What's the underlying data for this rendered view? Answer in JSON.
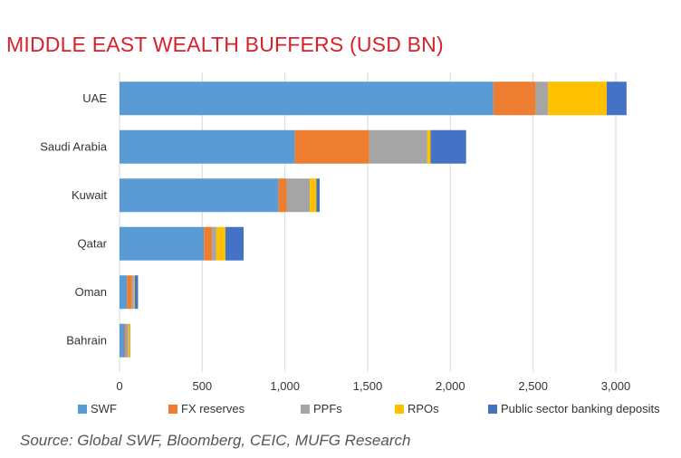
{
  "title": "MIDDLE EAST WEALTH BUFFERS (USD BN)",
  "source": "Source: Global SWF, Bloomberg, CEIC, MUFG Research",
  "chart_data": {
    "type": "bar",
    "orientation": "horizontal",
    "stacked": true,
    "categories": [
      "UAE",
      "Saudi Arabia",
      "Kuwait",
      "Qatar",
      "Oman",
      "Bahrain"
    ],
    "series": [
      {
        "name": "SWF",
        "color": "#5b9bd5",
        "values": [
          2260,
          1060,
          960,
          510,
          45,
          30
        ]
      },
      {
        "name": "FX reserves",
        "color": "#ed7d31",
        "values": [
          255,
          450,
          50,
          50,
          30,
          8
        ]
      },
      {
        "name": "PPFs",
        "color": "#a5a5a5",
        "values": [
          75,
          350,
          140,
          25,
          12,
          15
        ]
      },
      {
        "name": "RPOs",
        "color": "#ffc000",
        "values": [
          355,
          20,
          40,
          55,
          5,
          10
        ]
      },
      {
        "name": "Public sector banking deposits",
        "color": "#4472c4",
        "values": [
          120,
          215,
          20,
          110,
          20,
          2
        ]
      }
    ],
    "xlim": [
      0,
      3000
    ],
    "xticks": [
      0,
      500,
      1000,
      1500,
      2000,
      2500,
      3000
    ],
    "xtick_labels": [
      "0",
      "500",
      "1,000",
      "1,500",
      "2,000",
      "2,500",
      "3,000"
    ],
    "xlabel": "",
    "ylabel": "",
    "grid": true,
    "legend_position": "bottom"
  }
}
